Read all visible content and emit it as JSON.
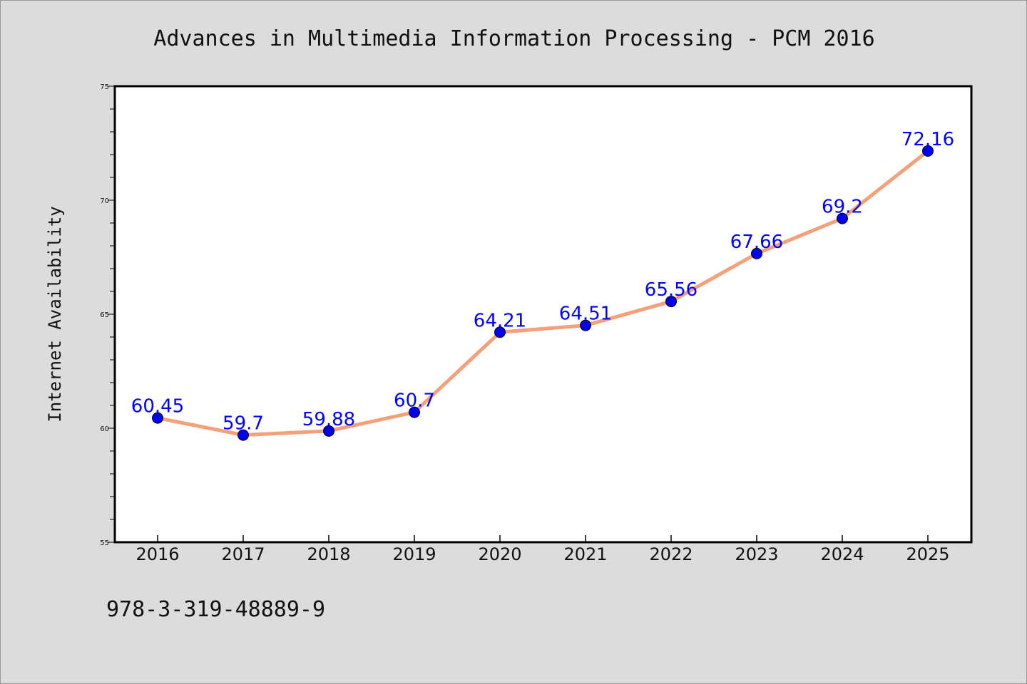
{
  "figure": {
    "footnote": "978-3-319-48889-9"
  },
  "chart_data": {
    "type": "line",
    "title": "Advances in Multimedia Information Processing - PCM 2016",
    "xlabel": "",
    "ylabel": "Internet Availability",
    "categories": [
      "2016",
      "2017",
      "2018",
      "2019",
      "2020",
      "2021",
      "2022",
      "2023",
      "2024",
      "2025"
    ],
    "series": [
      {
        "values": [
          60.45,
          59.7,
          59.88,
          60.7,
          64.21,
          64.51,
          65.56,
          67.66,
          69.2,
          72.16
        ],
        "labels": [
          "60.45",
          "59.7",
          "59.88",
          "60.7",
          "64.21",
          "64.51",
          "65.56",
          "67.66",
          "69.2",
          "72.16"
        ],
        "line_color": "#f4a07a",
        "marker_color": "#0000ee"
      }
    ],
    "ylim": [
      55,
      75
    ],
    "yticks": [
      55,
      60,
      65,
      70,
      75
    ],
    "ytick_labels": [
      "55",
      "60",
      "65",
      "70",
      "75"
    ],
    "grid": false,
    "legend": "none",
    "colors": {
      "background": "#dcdcdc",
      "plot_background": "#ffffff",
      "data_label": "#0000ff"
    }
  }
}
